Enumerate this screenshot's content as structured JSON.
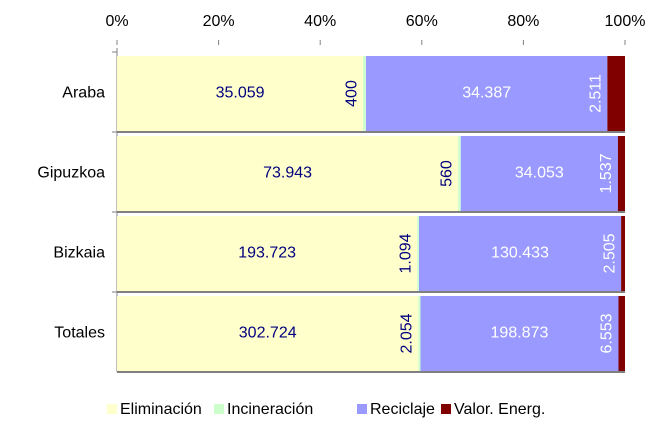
{
  "chart_data": {
    "type": "stacked-bar-100",
    "categories": [
      "Araba",
      "Gipuzkoa",
      "Bizkaia",
      "Totales"
    ],
    "series": [
      {
        "name": "Eliminación",
        "color": "#ffffcc",
        "values": [
          35059,
          73943,
          193723,
          302724
        ],
        "value_labels": [
          "35.059",
          "73.943",
          "193.723",
          "302.724"
        ]
      },
      {
        "name": "Incineración",
        "color": "#ccffcc",
        "values": [
          400,
          560,
          1094,
          2054
        ],
        "value_labels": [
          "400",
          "560",
          "1.094",
          "2.054"
        ]
      },
      {
        "name": "Reciclaje",
        "color": "#9999ff",
        "values": [
          34387,
          34053,
          130433,
          198873
        ],
        "value_labels": [
          "34.387",
          "34.053",
          "130.433",
          "198.873"
        ]
      },
      {
        "name": "Valor. Energ.",
        "color": "#800000",
        "values": [
          2511,
          1537,
          2505,
          6553
        ],
        "value_labels": [
          "2.511",
          "1.537",
          "2.505",
          "6.553"
        ]
      }
    ],
    "xlim": [
      0,
      100
    ],
    "xticks": [
      {
        "value": 0,
        "label": "0%"
      },
      {
        "value": 20,
        "label": "20%"
      },
      {
        "value": 40,
        "label": "40%"
      },
      {
        "value": 60,
        "label": "60%"
      },
      {
        "value": 80,
        "label": "80%"
      },
      {
        "value": 100,
        "label": "100%"
      }
    ]
  }
}
